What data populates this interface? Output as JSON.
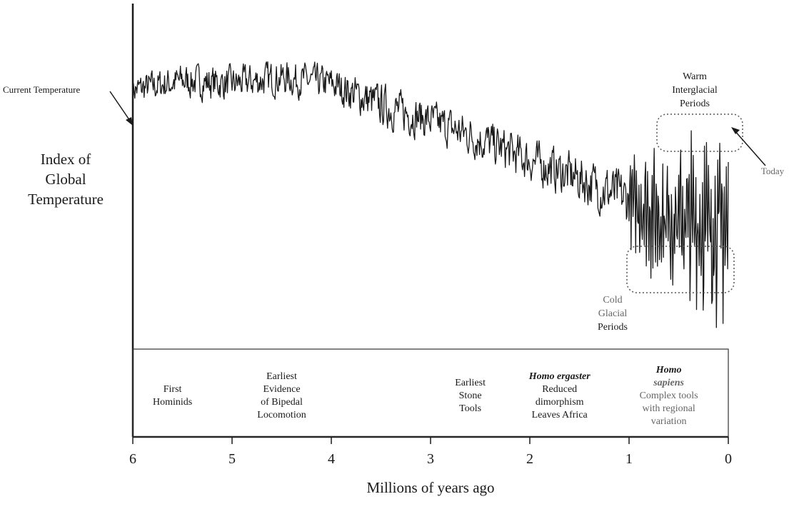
{
  "chart_data": {
    "type": "line",
    "title": "",
    "xlabel": "Millions of  years ago",
    "ylabel": [
      "Index of",
      "Global",
      "Temperature"
    ],
    "xlim": [
      6,
      0
    ],
    "ylim": [
      0,
      100
    ],
    "x_ticks": [
      "6",
      "5",
      "4",
      "3",
      "2",
      "1",
      "0"
    ],
    "grid": false,
    "series": [
      {
        "x": [
          6.0,
          5.5,
          5.0,
          4.5,
          4.0,
          3.5,
          3.0,
          2.5,
          2.0,
          1.5,
          1.0,
          0.75,
          0.5,
          0.25,
          0.0
        ],
        "y": [
          80,
          83,
          82,
          84,
          82,
          75,
          70,
          64,
          57,
          51,
          44,
          40,
          38,
          36,
          35
        ],
        "amplitude": [
          7,
          8,
          8,
          8,
          8,
          10,
          9,
          10,
          10,
          11,
          13,
          20,
          24,
          28,
          28
        ]
      }
    ],
    "annotations": {
      "current_temperature": "Current Temperature",
      "warm": [
        "Warm",
        "Interglacial",
        "Periods"
      ],
      "today": "Today",
      "cold": [
        "Cold",
        "Glacial",
        "Periods"
      ]
    },
    "events": [
      {
        "name": "first-hominids",
        "x": 5.6,
        "lines": [
          "First",
          "Hominids"
        ],
        "italic": []
      },
      {
        "name": "bipedal-locomotion",
        "x": 4.5,
        "lines": [
          "Earliest",
          "Evidence",
          "of Bipedal",
          "Locomotion"
        ],
        "italic": []
      },
      {
        "name": "stone-tools",
        "x": 2.6,
        "lines": [
          "Earliest",
          "Stone",
          "Tools"
        ],
        "italic": []
      },
      {
        "name": "homo-ergaster",
        "x": 1.7,
        "lines": [
          "Homo ergaster",
          "Reduced",
          "dimorphism",
          "Leaves Africa"
        ],
        "italic": [
          0
        ]
      },
      {
        "name": "homo-sapiens",
        "x": 0.6,
        "lines": [
          "Homo",
          "sapiens",
          "Complex tools",
          "with regional",
          "variation"
        ],
        "italic": [
          0,
          1
        ]
      }
    ]
  }
}
